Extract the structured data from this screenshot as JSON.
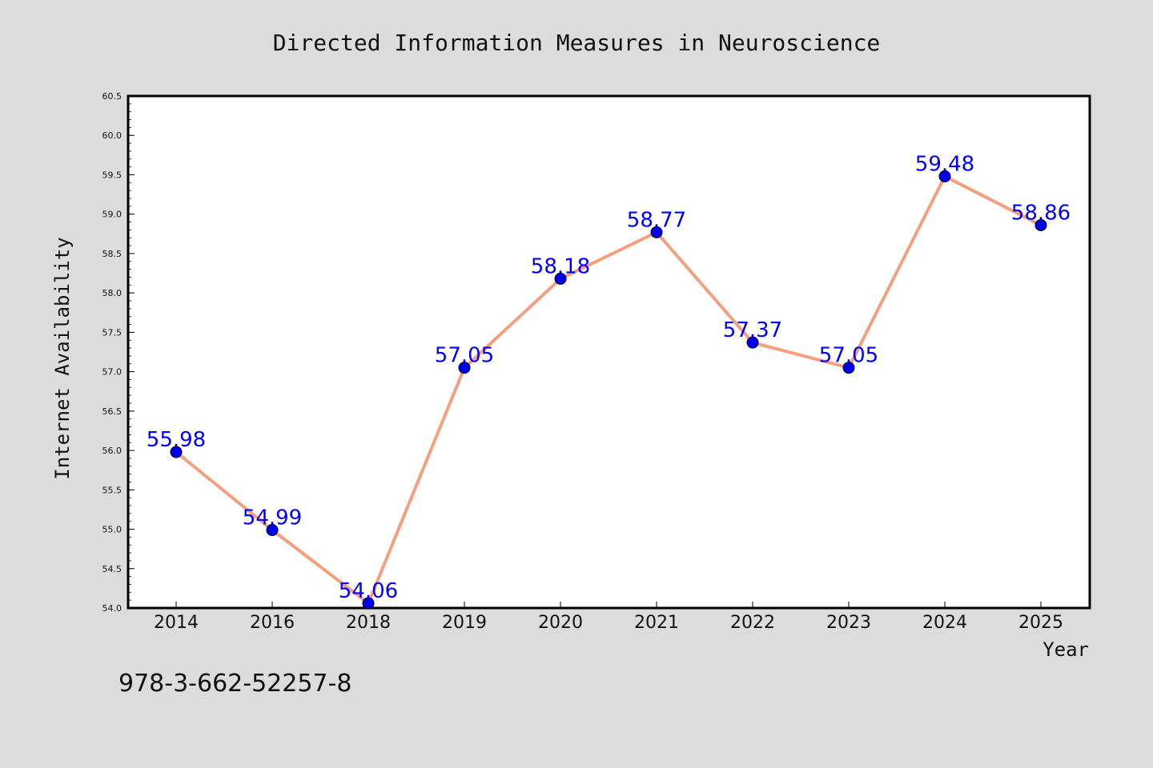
{
  "chart_data": {
    "type": "line",
    "title": "Directed Information Measures in Neuroscience",
    "xlabel": "Year",
    "ylabel": "Internet Availability",
    "categories": [
      "2014",
      "2016",
      "2018",
      "2019",
      "2020",
      "2021",
      "2022",
      "2023",
      "2024",
      "2025"
    ],
    "series": [
      {
        "values": [
          55.98,
          54.99,
          54.06,
          57.05,
          58.18,
          58.77,
          57.37,
          57.05,
          59.48,
          58.86
        ]
      }
    ],
    "data_labels": [
      "55.98",
      "54.99",
      "54.06",
      "57.05",
      "58.18",
      "58.77",
      "57.37",
      "57.05",
      "59.48",
      "58.86"
    ],
    "ylim": [
      54.0,
      60.5
    ],
    "yticks": [
      "54.0",
      "54.5",
      "55.0",
      "55.5",
      "56.0",
      "56.5",
      "57.0",
      "57.5",
      "58.0",
      "58.5",
      "59.0",
      "59.5",
      "60.0",
      "60.5"
    ],
    "grid": false,
    "colors": {
      "line": "#f4a07e",
      "marker": "#0000ee",
      "label": "#0000ff",
      "background": "#dcdcdc",
      "plot_background": "#ffffff"
    },
    "annotation": "978-3-662-52257-8"
  }
}
